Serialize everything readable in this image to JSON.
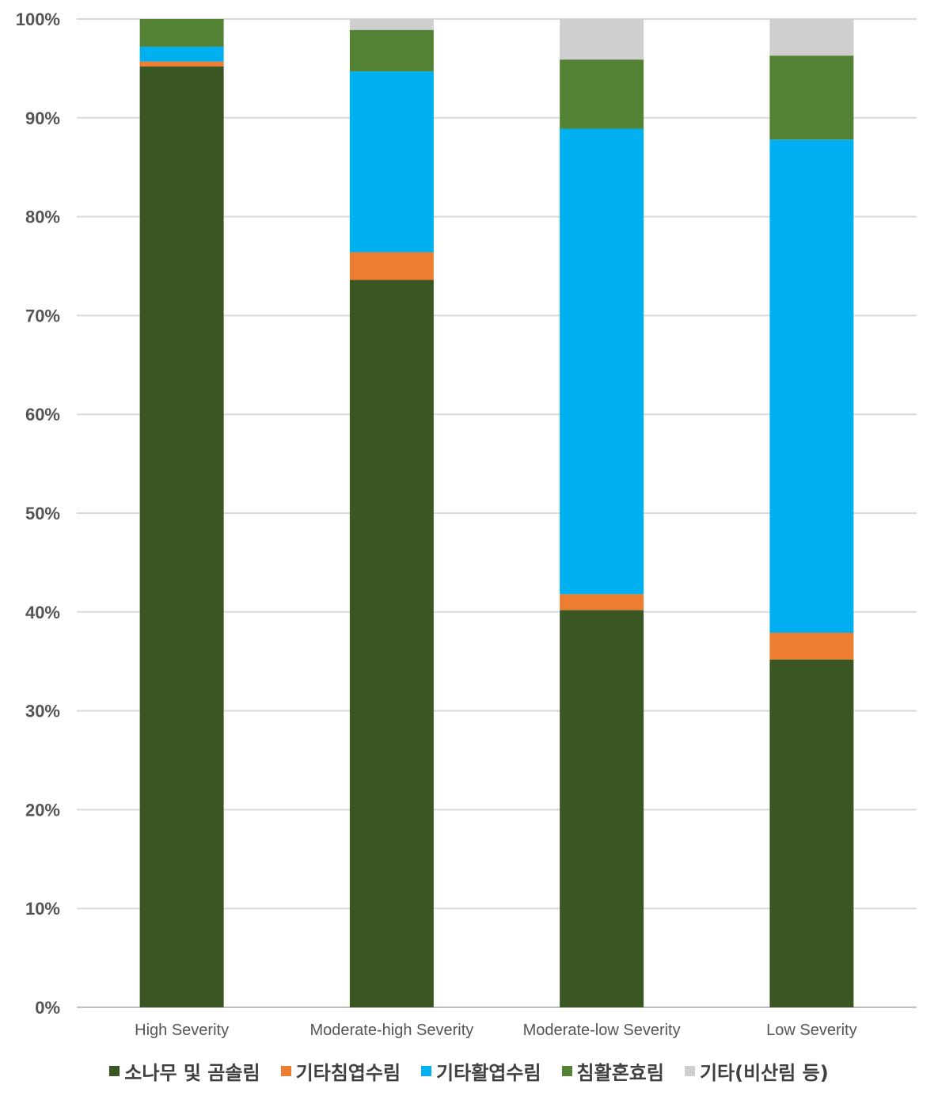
{
  "chart_data": {
    "type": "bar",
    "stacked": true,
    "percent": true,
    "categories": [
      "High Severity",
      "Moderate-high Severity",
      "Moderate-low Severity",
      "Low Severity"
    ],
    "series": [
      {
        "name": "소나무 및 곰솔림",
        "color": "#3A5723",
        "values": [
          95.2,
          73.6,
          40.2,
          35.2
        ]
      },
      {
        "name": "기타침엽수림",
        "color": "#ED7D31",
        "values": [
          0.5,
          2.8,
          1.6,
          2.7
        ]
      },
      {
        "name": "기타활엽수림",
        "color": "#00B0F0",
        "values": [
          1.5,
          18.3,
          47.1,
          49.9
        ]
      },
      {
        "name": "침활혼효림",
        "color": "#548235",
        "values": [
          2.8,
          4.2,
          7.0,
          8.5
        ]
      },
      {
        "name": "기타(비산림 등)",
        "color": "#D0CECE",
        "values": [
          0.0,
          1.1,
          4.1,
          3.7
        ]
      }
    ],
    "y_ticks": [
      "0%",
      "10%",
      "20%",
      "30%",
      "40%",
      "50%",
      "60%",
      "70%",
      "80%",
      "90%",
      "100%"
    ],
    "ylim": [
      0,
      100
    ],
    "grid": true,
    "legend_position": "bottom"
  }
}
